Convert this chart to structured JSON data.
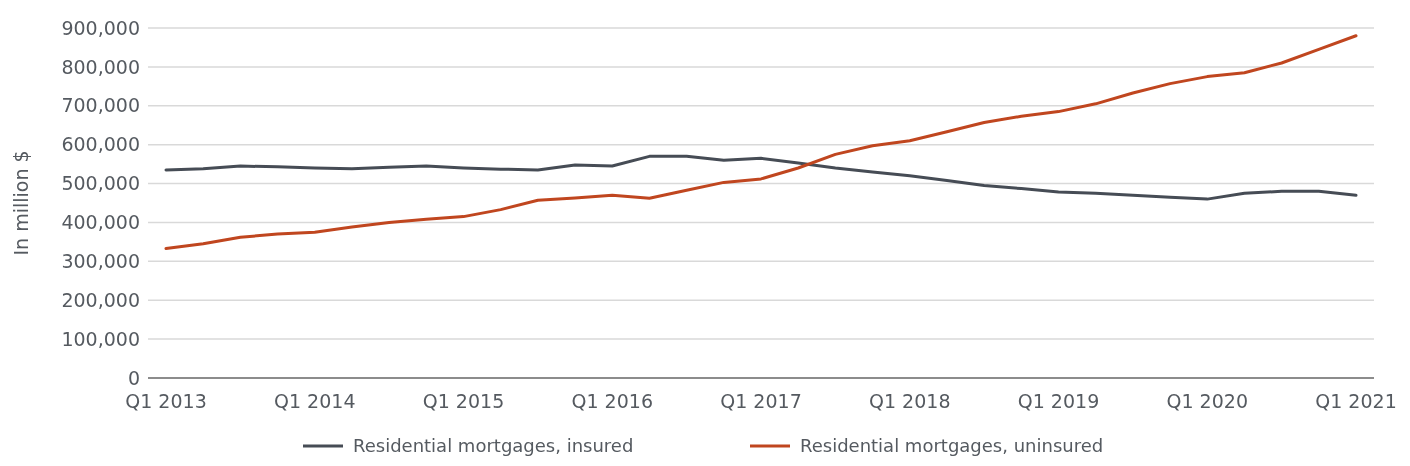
{
  "chart_data": {
    "type": "line",
    "ylabel": "In million $",
    "categories": [
      "Q1 2013",
      null,
      null,
      null,
      "Q1 2014",
      null,
      null,
      null,
      "Q1 2015",
      null,
      null,
      null,
      "Q1 2016",
      null,
      null,
      null,
      "Q1 2017",
      null,
      null,
      null,
      "Q1 2018",
      null,
      null,
      null,
      "Q1 2019",
      null,
      null,
      null,
      "Q1 2020",
      null,
      null,
      null,
      "Q1 2021"
    ],
    "series": [
      {
        "name": "Residential mortgages, insured",
        "color": "#464c55",
        "values": [
          535000,
          538000,
          545000,
          543000,
          540000,
          538000,
          542000,
          545000,
          540000,
          537000,
          535000,
          548000,
          545000,
          570000,
          570000,
          560000,
          565000,
          553000,
          540000,
          530000,
          520000,
          508000,
          495000,
          487000,
          478000,
          475000,
          470000,
          465000,
          460000,
          475000,
          480000,
          480000,
          470000
        ]
      },
      {
        "name": "Residential mortgages, uninsured",
        "color": "#c0461f",
        "values": [
          333000,
          345000,
          362000,
          370000,
          375000,
          388000,
          400000,
          408000,
          415000,
          433000,
          457000,
          463000,
          470000,
          462000,
          483000,
          503000,
          512000,
          540000,
          575000,
          597000,
          610000,
          633000,
          657000,
          673000,
          685000,
          705000,
          733000,
          757000,
          775000,
          785000,
          810000,
          845000,
          880000
        ]
      }
    ],
    "ylim": [
      0,
      900000
    ],
    "yticks": [
      {
        "value": 0,
        "label": "0"
      },
      {
        "value": 100000,
        "label": "100,000"
      },
      {
        "value": 200000,
        "label": "200,000"
      },
      {
        "value": 300000,
        "label": "300,000"
      },
      {
        "value": 400000,
        "label": "400,000"
      },
      {
        "value": 500000,
        "label": "500,000"
      },
      {
        "value": 600000,
        "label": "600,000"
      },
      {
        "value": 700000,
        "label": "700,000"
      },
      {
        "value": 800000,
        "label": "800,000"
      },
      {
        "value": 900000,
        "label": "900,000"
      }
    ],
    "grid": "y",
    "legend": "bottom",
    "line_style": "solid",
    "marker": "none"
  }
}
